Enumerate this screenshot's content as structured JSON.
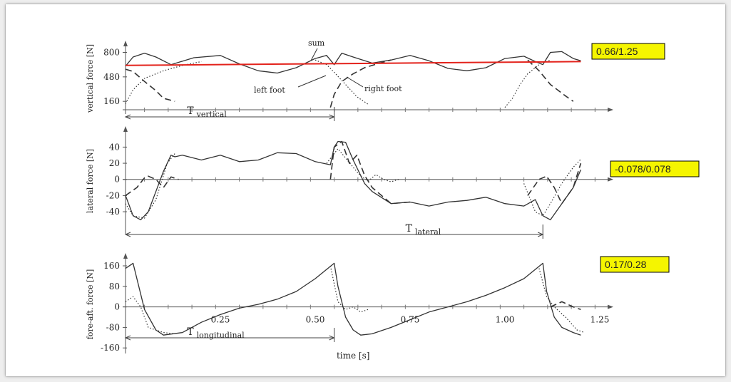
{
  "colors": {
    "badge_bg": "#f5f500",
    "reference_line": "#e3221b",
    "trace": "#333333"
  },
  "chart_data": [
    {
      "type": "line",
      "ylabel": "vertical force [N]",
      "yticks": [
        800,
        480,
        160
      ],
      "ylim": [
        50,
        870
      ],
      "xlim": [
        0.0,
        1.28
      ],
      "badge": "0.66/1.25",
      "period_label": "T",
      "period_sub": "vertical",
      "period": [
        0.0,
        0.55
      ],
      "annotations": {
        "sum": "sum",
        "left_foot": "left foot",
        "right_foot": "right foot"
      },
      "reference_line": {
        "x": [
          0.0,
          1.2
        ],
        "y": [
          630,
          680
        ]
      },
      "series": [
        {
          "style": "solid",
          "x": [
            0.0,
            0.02,
            0.05,
            0.08,
            0.12,
            0.18,
            0.25,
            0.3,
            0.35,
            0.4,
            0.45,
            0.5,
            0.53,
            0.55,
            0.57,
            0.6,
            0.65,
            0.7,
            0.75,
            0.8,
            0.85,
            0.9,
            0.95,
            1.0,
            1.05,
            1.08,
            1.1,
            1.12,
            1.15,
            1.18,
            1.2
          ],
          "y": [
            620,
            740,
            790,
            740,
            640,
            730,
            760,
            650,
            560,
            530,
            600,
            720,
            760,
            640,
            790,
            740,
            660,
            700,
            760,
            690,
            590,
            560,
            600,
            720,
            750,
            680,
            640,
            800,
            810,
            720,
            690
          ]
        },
        {
          "style": "dashed",
          "x": [
            0.0,
            0.02,
            0.05,
            0.08,
            0.1,
            0.13
          ],
          "y": [
            580,
            550,
            420,
            300,
            200,
            160
          ]
        },
        {
          "style": "dashed",
          "x": [
            0.54,
            0.55,
            0.57,
            0.6,
            0.63,
            0.67,
            0.7
          ],
          "y": [
            80,
            250,
            420,
            520,
            600,
            660,
            700
          ]
        },
        {
          "style": "dashed",
          "x": [
            1.06,
            1.09,
            1.12,
            1.16,
            1.18
          ],
          "y": [
            700,
            560,
            380,
            230,
            160
          ]
        },
        {
          "style": "dotted",
          "x": [
            0.0,
            0.02,
            0.05,
            0.1,
            0.15,
            0.2
          ],
          "y": [
            130,
            310,
            460,
            560,
            630,
            680
          ]
        },
        {
          "style": "dotted",
          "x": [
            0.5,
            0.53,
            0.55,
            0.58,
            0.61,
            0.64
          ],
          "y": [
            700,
            640,
            540,
            380,
            220,
            120
          ]
        },
        {
          "style": "dotted",
          "x": [
            1.0,
            1.02,
            1.04,
            1.06,
            1.09,
            1.12
          ],
          "y": [
            80,
            200,
            380,
            520,
            640,
            700
          ]
        }
      ]
    },
    {
      "type": "line",
      "ylabel": "lateral force [N]",
      "yticks": [
        40,
        20,
        0,
        -20,
        -40
      ],
      "ylim": [
        -62,
        58
      ],
      "xlim": [
        0.0,
        1.28
      ],
      "badge": "-0.078/0.078",
      "period_label": "T",
      "period_sub": "lateral",
      "period": [
        0.0,
        1.1
      ],
      "series": [
        {
          "style": "solid",
          "x": [
            0.0,
            0.02,
            0.04,
            0.06,
            0.08,
            0.1,
            0.12,
            0.13,
            0.15,
            0.2,
            0.25,
            0.3,
            0.35,
            0.4,
            0.45,
            0.5,
            0.54,
            0.55,
            0.56,
            0.58,
            0.6,
            0.63,
            0.65,
            0.7,
            0.75,
            0.8,
            0.85,
            0.9,
            0.95,
            1.0,
            1.05,
            1.08,
            1.1,
            1.12,
            1.15,
            1.18,
            1.2
          ],
          "y": [
            -20,
            -45,
            -50,
            -40,
            -15,
            10,
            30,
            28,
            30,
            24,
            30,
            22,
            24,
            33,
            32,
            22,
            18,
            40,
            47,
            46,
            24,
            -5,
            -15,
            -30,
            -28,
            -33,
            -28,
            -26,
            -22,
            -30,
            -33,
            -25,
            -45,
            -50,
            -30,
            -10,
            12
          ]
        },
        {
          "style": "dashed",
          "x": [
            0.0,
            0.03,
            0.05,
            0.06,
            0.08,
            0.1,
            0.12,
            0.14
          ],
          "y": [
            -20,
            -10,
            2,
            4,
            0,
            -10,
            3,
            0
          ]
        },
        {
          "style": "dashed",
          "x": [
            0.54,
            0.55,
            0.57,
            0.59,
            0.61,
            0.63,
            0.65,
            0.7,
            0.75
          ],
          "y": [
            0,
            40,
            47,
            20,
            30,
            5,
            -10,
            -30,
            -28
          ]
        },
        {
          "style": "dashed",
          "x": [
            1.06,
            1.09,
            1.11,
            1.13,
            1.15,
            1.18,
            1.2
          ],
          "y": [
            -20,
            0,
            4,
            -10,
            -30,
            -10,
            20
          ]
        },
        {
          "style": "dotted",
          "x": [
            0.0,
            0.02,
            0.05,
            0.08,
            0.11,
            0.13
          ],
          "y": [
            -30,
            -45,
            -48,
            -25,
            20,
            32
          ]
        },
        {
          "style": "dotted",
          "x": [
            0.53,
            0.56,
            0.6,
            0.62,
            0.64,
            0.66,
            0.68,
            0.7,
            0.72
          ],
          "y": [
            20,
            38,
            15,
            4,
            -2,
            6,
            0,
            -3,
            0
          ]
        },
        {
          "style": "dotted",
          "x": [
            1.05,
            1.08,
            1.1,
            1.12,
            1.15,
            1.18,
            1.2
          ],
          "y": [
            -5,
            -40,
            -45,
            -30,
            -5,
            15,
            25
          ]
        }
      ]
    },
    {
      "type": "line",
      "ylabel": "fore-aft. force [N]",
      "yticks": [
        160,
        80,
        0,
        -80,
        -160
      ],
      "xticks": [
        0.25,
        0.5,
        0.75,
        1.0,
        1.25
      ],
      "xtick_labels": [
        "0.25",
        "0.50",
        "0.75",
        "1.00",
        "1.25"
      ],
      "ylim": [
        -165,
        185
      ],
      "xlim": [
        0.0,
        1.28
      ],
      "xlabel": "time [s]",
      "badge": "0.17/0.28",
      "period_label": "T",
      "period_sub": "longitudinal",
      "period": [
        0.0,
        0.55
      ],
      "series": [
        {
          "style": "solid",
          "x": [
            0.0,
            0.02,
            0.05,
            0.08,
            0.1,
            0.15,
            0.2,
            0.25,
            0.3,
            0.35,
            0.4,
            0.45,
            0.5,
            0.55,
            0.56,
            0.58,
            0.6,
            0.62,
            0.65,
            0.7,
            0.75,
            0.8,
            0.85,
            0.9,
            0.95,
            1.0,
            1.05,
            1.1,
            1.11,
            1.13,
            1.15,
            1.18,
            1.2
          ],
          "y": [
            150,
            170,
            -10,
            -90,
            -110,
            -100,
            -60,
            -30,
            -5,
            10,
            30,
            60,
            110,
            170,
            80,
            -40,
            -90,
            -110,
            -105,
            -80,
            -50,
            -20,
            0,
            20,
            45,
            75,
            110,
            170,
            60,
            -40,
            -80,
            -100,
            -110
          ]
        },
        {
          "style": "dotted",
          "x": [
            0.0,
            0.02,
            0.04,
            0.06,
            0.1,
            0.13
          ],
          "y": [
            20,
            40,
            0,
            -80,
            -100,
            -105
          ]
        },
        {
          "style": "dotted",
          "x": [
            0.54,
            0.56,
            0.58,
            0.6,
            0.62,
            0.64
          ],
          "y": [
            160,
            20,
            -10,
            0,
            -20,
            -10
          ]
        },
        {
          "style": "dotted",
          "x": [
            1.09,
            1.11,
            1.13,
            1.16,
            1.19,
            1.21
          ],
          "y": [
            150,
            40,
            0,
            -40,
            -90,
            -100
          ]
        },
        {
          "style": "dashed",
          "x": [
            1.12,
            1.15,
            1.18,
            1.2
          ],
          "y": [
            0,
            20,
            0,
            -10
          ]
        }
      ]
    }
  ]
}
